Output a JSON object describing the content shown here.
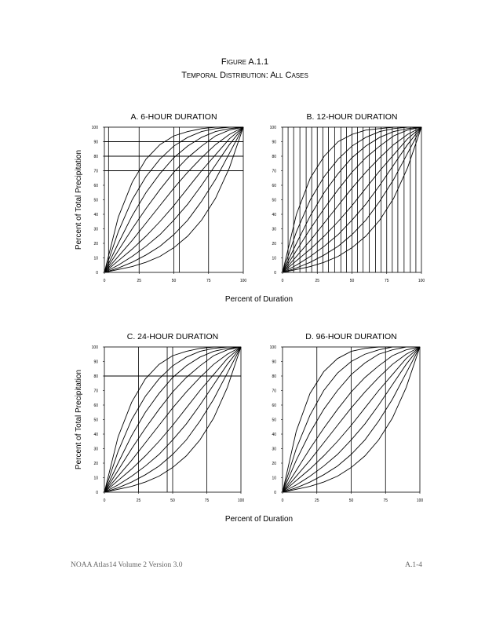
{
  "header": {
    "title": "Figure A.1.1",
    "subtitle": "Temporal Distribution: All Cases"
  },
  "footer": {
    "left": "NOAA Atlas14 Volume 2 Version 3.0",
    "right": "A.1-4"
  },
  "chart_data": [
    {
      "type": "line",
      "title": "A. 6-HOUR DURATION",
      "ylabel": "Percent of Total Precipitation",
      "xlabel": "Percent of Duration",
      "x": [
        0,
        10,
        20,
        30,
        40,
        50,
        60,
        70,
        80,
        90,
        100
      ],
      "series": [
        {
          "color": "#000",
          "values": [
            0,
            38,
            62,
            78,
            88,
            94,
            97,
            99,
            100,
            100,
            100
          ]
        },
        {
          "color": "#000",
          "values": [
            0,
            28,
            50,
            66,
            78,
            87,
            93,
            97,
            99,
            100,
            100
          ]
        },
        {
          "color": "#000",
          "values": [
            0,
            20,
            39,
            55,
            68,
            79,
            87,
            93,
            97,
            99,
            100
          ]
        },
        {
          "color": "#000",
          "values": [
            0,
            15,
            30,
            44,
            57,
            69,
            79,
            87,
            94,
            98,
            100
          ]
        },
        {
          "color": "#000",
          "values": [
            0,
            11,
            22,
            34,
            46,
            58,
            69,
            79,
            88,
            95,
            100
          ]
        },
        {
          "color": "#000",
          "values": [
            0,
            8,
            16,
            25,
            35,
            46,
            58,
            70,
            81,
            92,
            100
          ]
        },
        {
          "color": "#000",
          "values": [
            0,
            5,
            11,
            18,
            26,
            36,
            47,
            60,
            74,
            88,
            100
          ]
        },
        {
          "color": "#000",
          "values": [
            0,
            3,
            7,
            12,
            18,
            26,
            36,
            49,
            64,
            82,
            100
          ]
        },
        {
          "color": "#000",
          "values": [
            0,
            2,
            4,
            7,
            11,
            17,
            25,
            36,
            51,
            72,
            100
          ]
        }
      ],
      "xlim": [
        0,
        100
      ],
      "ylim": [
        0,
        100
      ],
      "xticks": [
        0,
        25,
        50,
        75,
        100
      ],
      "yticks": [
        0,
        10,
        20,
        30,
        40,
        50,
        60,
        70,
        80,
        90,
        100
      ],
      "hlines": [
        70,
        80,
        90
      ],
      "vlines": [
        3,
        25,
        50,
        54,
        75
      ]
    },
    {
      "type": "line",
      "title": "B. 12-HOUR DURATION",
      "x": [
        0,
        10,
        20,
        30,
        40,
        50,
        60,
        70,
        80,
        90,
        100
      ],
      "series": [
        {
          "color": "#000",
          "values": [
            0,
            40,
            65,
            80,
            90,
            95,
            98,
            99,
            100,
            100,
            100
          ]
        },
        {
          "color": "#000",
          "values": [
            0,
            28,
            50,
            66,
            78,
            87,
            93,
            97,
            99,
            100,
            100
          ]
        },
        {
          "color": "#000",
          "values": [
            0,
            20,
            39,
            55,
            68,
            79,
            87,
            93,
            97,
            99,
            100
          ]
        },
        {
          "color": "#000",
          "values": [
            0,
            15,
            30,
            44,
            57,
            69,
            79,
            87,
            94,
            98,
            100
          ]
        },
        {
          "color": "#000",
          "values": [
            0,
            11,
            22,
            34,
            46,
            58,
            69,
            79,
            88,
            95,
            100
          ]
        },
        {
          "color": "#000",
          "values": [
            0,
            8,
            16,
            25,
            35,
            46,
            58,
            70,
            81,
            92,
            100
          ]
        },
        {
          "color": "#000",
          "values": [
            0,
            5,
            11,
            18,
            26,
            36,
            47,
            60,
            74,
            88,
            100
          ]
        },
        {
          "color": "#000",
          "values": [
            0,
            3,
            7,
            12,
            18,
            26,
            36,
            49,
            64,
            82,
            100
          ]
        },
        {
          "color": "#000",
          "values": [
            0,
            2,
            4,
            7,
            11,
            17,
            25,
            36,
            51,
            72,
            100
          ]
        }
      ],
      "xlim": [
        0,
        100
      ],
      "ylim": [
        0,
        100
      ],
      "xticks": [
        0,
        25,
        50,
        75,
        100
      ],
      "yticks": [
        0,
        10,
        20,
        30,
        40,
        50,
        60,
        70,
        80,
        90,
        100
      ],
      "hlines": [],
      "vlines": [
        4,
        8,
        12.5,
        17,
        21,
        25,
        29,
        33,
        37.5,
        42,
        46,
        50,
        54,
        58,
        62.5,
        67,
        71,
        75,
        79,
        83,
        87.5,
        92,
        96
      ]
    },
    {
      "type": "line",
      "title": "C. 24-HOUR DURATION",
      "ylabel": "Percent of Total Precipitation",
      "xlabel": "Percent of Duration",
      "x": [
        0,
        10,
        20,
        30,
        40,
        50,
        60,
        70,
        80,
        90,
        100
      ],
      "series": [
        {
          "color": "#000",
          "values": [
            0,
            38,
            62,
            78,
            88,
            94,
            97,
            99,
            100,
            100,
            100
          ]
        },
        {
          "color": "#000",
          "values": [
            0,
            28,
            50,
            66,
            78,
            87,
            93,
            97,
            99,
            100,
            100
          ]
        },
        {
          "color": "#000",
          "values": [
            0,
            20,
            39,
            55,
            68,
            79,
            87,
            93,
            97,
            99,
            100
          ]
        },
        {
          "color": "#000",
          "values": [
            0,
            15,
            30,
            44,
            57,
            69,
            79,
            87,
            94,
            98,
            100
          ]
        },
        {
          "color": "#000",
          "values": [
            0,
            11,
            22,
            34,
            46,
            58,
            69,
            79,
            88,
            95,
            100
          ]
        },
        {
          "color": "#000",
          "values": [
            0,
            8,
            16,
            25,
            35,
            46,
            58,
            70,
            81,
            92,
            100
          ]
        },
        {
          "color": "#000",
          "values": [
            0,
            5,
            11,
            18,
            26,
            36,
            47,
            60,
            74,
            88,
            100
          ]
        },
        {
          "color": "#000",
          "values": [
            0,
            3,
            7,
            12,
            18,
            26,
            36,
            49,
            64,
            82,
            100
          ]
        },
        {
          "color": "#000",
          "values": [
            0,
            2,
            4,
            7,
            11,
            17,
            25,
            36,
            51,
            72,
            100
          ]
        }
      ],
      "xlim": [
        0,
        100
      ],
      "ylim": [
        0,
        100
      ],
      "xticks": [
        0,
        25,
        50,
        75,
        100
      ],
      "yticks": [
        0,
        10,
        20,
        30,
        40,
        50,
        60,
        70,
        80,
        90,
        100
      ],
      "hlines": [
        80
      ],
      "vlines": [
        25,
        46,
        50,
        75
      ]
    },
    {
      "type": "line",
      "title": "D. 96-HOUR DURATION",
      "x": [
        0,
        10,
        20,
        30,
        40,
        50,
        60,
        70,
        80,
        90,
        100
      ],
      "series": [
        {
          "color": "#000",
          "values": [
            0,
            42,
            68,
            83,
            92,
            97,
            99,
            100,
            100,
            100,
            100
          ]
        },
        {
          "color": "#000",
          "values": [
            0,
            30,
            53,
            70,
            82,
            90,
            95,
            98,
            100,
            100,
            100
          ]
        },
        {
          "color": "#000",
          "values": [
            0,
            22,
            41,
            57,
            70,
            81,
            89,
            95,
            98,
            100,
            100
          ]
        },
        {
          "color": "#000",
          "values": [
            0,
            15,
            30,
            44,
            57,
            69,
            79,
            87,
            94,
            98,
            100
          ]
        },
        {
          "color": "#000",
          "values": [
            0,
            11,
            22,
            34,
            46,
            58,
            69,
            79,
            88,
            95,
            100
          ]
        },
        {
          "color": "#000",
          "values": [
            0,
            8,
            16,
            25,
            35,
            46,
            58,
            70,
            81,
            92,
            100
          ]
        },
        {
          "color": "#000",
          "values": [
            0,
            5,
            11,
            18,
            26,
            36,
            47,
            60,
            74,
            88,
            100
          ]
        },
        {
          "color": "#000",
          "values": [
            0,
            3,
            7,
            12,
            18,
            26,
            36,
            49,
            64,
            82,
            100
          ]
        },
        {
          "color": "#000",
          "values": [
            0,
            2,
            4,
            7,
            11,
            17,
            25,
            36,
            51,
            72,
            100
          ]
        }
      ],
      "xlim": [
        0,
        100
      ],
      "ylim": [
        0,
        100
      ],
      "xticks": [
        0,
        25,
        50,
        75,
        100
      ],
      "yticks": [
        0,
        10,
        20,
        30,
        40,
        50,
        60,
        70,
        80,
        90,
        100
      ],
      "hlines": [],
      "vlines": [
        25,
        50,
        75
      ]
    }
  ]
}
